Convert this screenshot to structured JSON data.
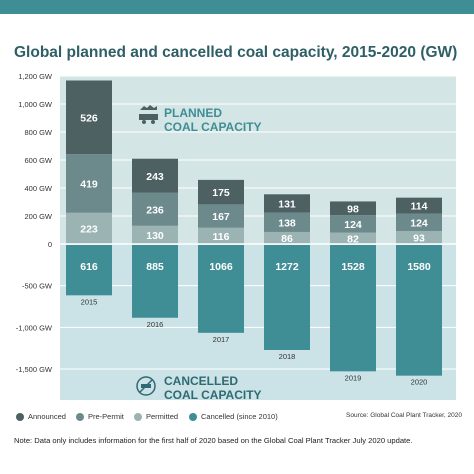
{
  "title": "Global planned and cancelled coal capacity, 2015-2020 (GW)",
  "chart_data": {
    "type": "bar",
    "stacked": true,
    "categories": [
      "2015",
      "2016",
      "2017",
      "2018",
      "2019",
      "2020"
    ],
    "series": [
      {
        "name": "Announced",
        "color": "#4d6062",
        "values": [
          526,
          243,
          175,
          131,
          98,
          114
        ]
      },
      {
        "name": "Pre-Permit",
        "color": "#6c8a8c",
        "values": [
          419,
          236,
          167,
          138,
          124,
          124
        ]
      },
      {
        "name": "Permitted",
        "color": "#9bb3b3",
        "values": [
          223,
          130,
          116,
          86,
          82,
          93
        ]
      },
      {
        "name": "Cancelled (since 2010)",
        "color": "#3f8e96",
        "values": [
          -616,
          -885,
          -1066,
          -1272,
          -1528,
          -1580
        ]
      }
    ],
    "cancelled_labels": [
      "616",
      "885",
      "1066",
      "1272",
      "1528",
      "1580"
    ],
    "y_ticks": [
      "1,200 GW",
      "1,000 GW",
      "800 GW",
      "600 GW",
      "400 GW",
      "200 GW",
      "0",
      "-500 GW",
      "-1,000 GW",
      "-1,500 GW"
    ],
    "ylim_planned": [
      0,
      1200
    ],
    "ylim_cancelled": [
      -1700,
      0
    ],
    "planned_label": [
      "PLANNED",
      "COAL CAPACITY"
    ],
    "cancelled_label": [
      "CANCELLED",
      "COAL CAPACITY"
    ],
    "colors": {
      "planned_bg": "#d4e5e5",
      "cancelled_bg": "#cbe3e6",
      "grid": "#ffffff",
      "planned_text": "#3f8e96",
      "cancelled_text": "#2e6a73"
    }
  },
  "legend": [
    {
      "label": "Announced",
      "color": "#4d6062"
    },
    {
      "label": "Pre-Permit",
      "color": "#6c8a8c"
    },
    {
      "label": "Permitted",
      "color": "#9bb3b3"
    },
    {
      "label": "Cancelled (since 2010)",
      "color": "#3f8e96"
    }
  ],
  "source": "Source: Global Coal Plant Tracker, 2020",
  "note": "Note: Data only includes information for the first half of 2020 based on the Global Coal Plant Tracker July 2020 update."
}
